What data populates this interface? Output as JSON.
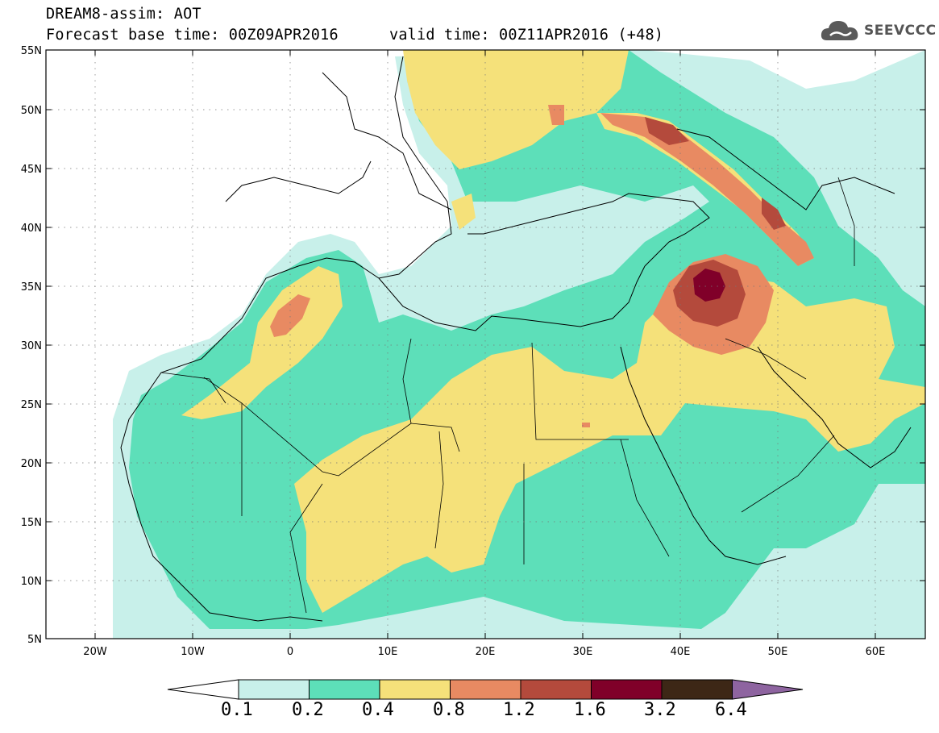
{
  "header": {
    "model_line": "DREAM8-assim: AOT",
    "base_time": "Forecast base time: 00Z09APR2016",
    "valid_time": "valid time: 00Z11APR2016 (+48)",
    "logo_text": "SEEVCCC"
  },
  "map": {
    "lat_labels": [
      "55N",
      "50N",
      "45N",
      "40N",
      "35N",
      "30N",
      "25N",
      "20N",
      "15N",
      "10N",
      "5N"
    ],
    "lon_labels": [
      "20W",
      "10W",
      "0",
      "10E",
      "20E",
      "30E",
      "40E",
      "50E",
      "60E"
    ],
    "domain": {
      "lon_min": -25,
      "lon_max": 65,
      "lat_min": 5,
      "lat_max": 55
    }
  },
  "colorbar": {
    "thresholds": [
      "0.1",
      "0.2",
      "0.4",
      "0.8",
      "1.2",
      "1.6",
      "3.2",
      "6.4"
    ],
    "colors": [
      "#ffffff",
      "#c8f0ea",
      "#5ddfb9",
      "#f5e17a",
      "#e88a62",
      "#b44a3c",
      "#800029",
      "#3d2716",
      "#8e64a0"
    ]
  },
  "field_colors": {
    "c1": "#c8f0ea",
    "c2": "#5ddfb9",
    "c3": "#f5e17a",
    "c4": "#e88a62",
    "c5": "#b44a3c",
    "c6": "#800029"
  }
}
